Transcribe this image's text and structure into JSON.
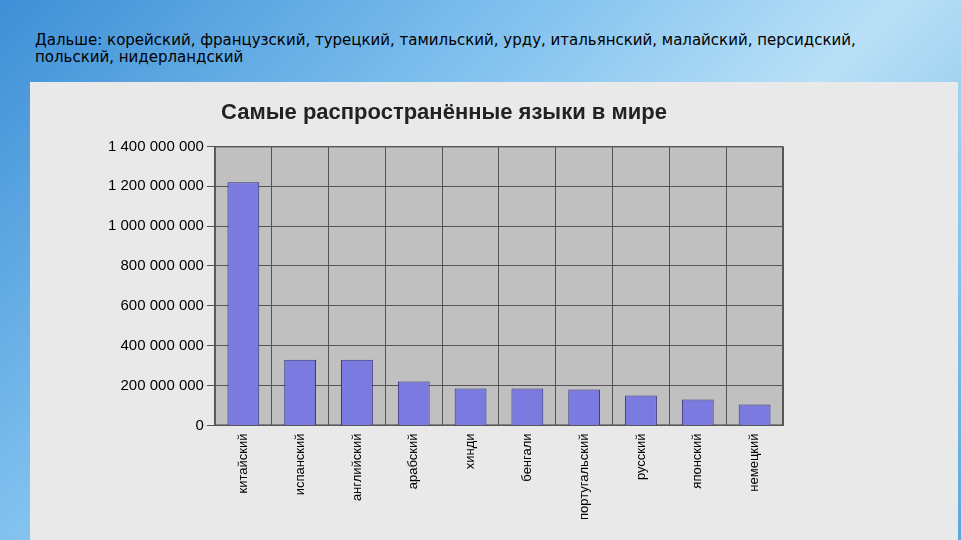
{
  "slide": {
    "caption": "Дальше: корейский, французский, турецкий, тамильский, урду, итальянский, малайский, персидский, польский, нидерландский"
  },
  "chart_data": {
    "type": "bar",
    "title": "Самые распространённые языки в мире",
    "categories": [
      "китайский",
      "испанский",
      "английский",
      "арабский",
      "хинди",
      "бенгали",
      "португальский",
      "русский",
      "японский",
      "немецкий"
    ],
    "values": [
      1220000000,
      330000000,
      330000000,
      220000000,
      185000000,
      185000000,
      180000000,
      150000000,
      130000000,
      105000000
    ],
    "color": "#7a7ae0",
    "ylim": [
      0,
      1400000000
    ],
    "yticks": [
      0,
      {
        "value": 200000000,
        "label": "200 000 000"
      },
      {
        "value": 400000000,
        "label": "400 000 000"
      },
      {
        "value": 600000000,
        "label": "600 000 000"
      },
      {
        "value": 800000000,
        "label": "800 000 000"
      },
      {
        "value": 1000000000,
        "label": "1 000 000 000"
      },
      {
        "value": 1200000000,
        "label": "1 200 000 000"
      },
      {
        "value": 1400000000,
        "label": "1 400 000 000"
      }
    ],
    "grid": true
  }
}
